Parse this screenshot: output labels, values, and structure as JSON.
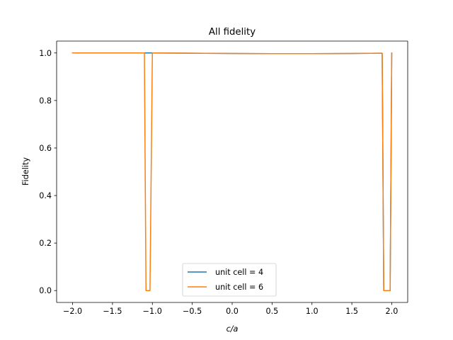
{
  "chart_data": {
    "type": "line",
    "title": "All fidelity",
    "xlabel": "c/a",
    "ylabel": "Fidelity",
    "xlim": [
      -2.2,
      2.2
    ],
    "ylim": [
      -0.05,
      1.05
    ],
    "xticks": [
      -2.0,
      -1.5,
      -1.0,
      -0.5,
      0.0,
      0.5,
      1.0,
      1.5,
      2.0
    ],
    "xtick_labels": [
      "−2.0",
      "−1.5",
      "−1.0",
      "−0.5",
      "0.0",
      "0.5",
      "1.0",
      "1.5",
      "2.0"
    ],
    "yticks": [
      0.0,
      0.2,
      0.4,
      0.6,
      0.8,
      1.0
    ],
    "ytick_labels": [
      "0.0",
      "0.2",
      "0.4",
      "0.6",
      "0.8",
      "1.0"
    ],
    "grid": false,
    "legend_position": "lower center",
    "series": [
      {
        "name": "unit cell = 4",
        "color": "#1f77b4",
        "x": [
          -2.0,
          -1.5,
          -1.1,
          -1.09,
          -1.0,
          -0.5,
          0.0,
          0.5,
          1.0,
          1.5,
          1.88,
          1.9,
          1.95,
          1.98,
          2.0
        ],
        "y": [
          1.0,
          1.0,
          1.0,
          1.0,
          1.0,
          0.999,
          0.998,
          0.997,
          0.997,
          0.998,
          0.999,
          0.0,
          0.0,
          0.0,
          1.0
        ]
      },
      {
        "name": "unit cell = 6",
        "color": "#ff7f0e",
        "x": [
          -2.0,
          -1.5,
          -1.1,
          -1.08,
          -1.06,
          -1.03,
          -1.0,
          -0.5,
          0.0,
          0.5,
          1.0,
          1.5,
          1.88,
          1.9,
          1.92,
          1.95,
          1.98,
          2.0
        ],
        "y": [
          1.0,
          1.0,
          1.0,
          0.0,
          0.0,
          0.0,
          1.0,
          0.999,
          0.998,
          0.997,
          0.997,
          0.998,
          0.999,
          0.0,
          0.0,
          0.0,
          0.0,
          1.0
        ]
      }
    ]
  }
}
